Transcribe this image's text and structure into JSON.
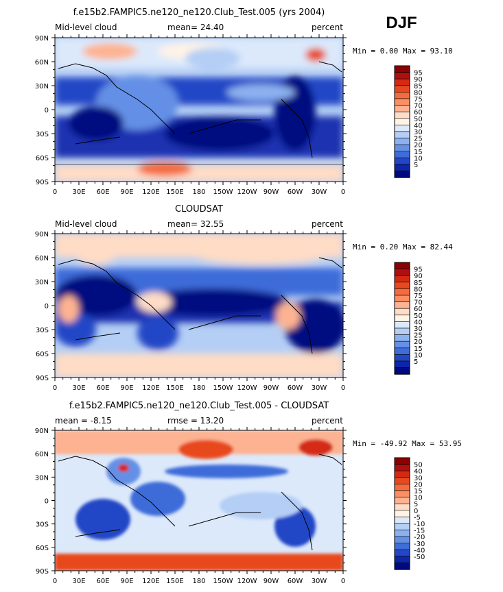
{
  "season": "DJF",
  "panels": [
    {
      "title": "f.e15b2.FAMPIC5.ne120_ne120.Club_Test.005 (yrs 2004)",
      "left_label": "Mid-level cloud",
      "center_label": "mean=  24.40",
      "right_label": "percent",
      "minmax": "Min =    0.00 Max =   93.10"
    },
    {
      "title": "CLOUDSAT",
      "left_label": "Mid-level cloud",
      "center_label": "mean=  32.55",
      "right_label": "percent",
      "minmax": "Min =    0.20 Max =   82.44"
    },
    {
      "title": "f.e15b2.FAMPIC5.ne120_ne120.Club_Test.005 - CLOUDSAT",
      "left_label": "mean =  -8.15",
      "center_label": "rmse =  13.20",
      "right_label": "percent",
      "minmax": "Min = -49.92 Max =   53.95"
    }
  ],
  "x_ticks": [
    "0",
    "30E",
    "60E",
    "90E",
    "120E",
    "150E",
    "180",
    "150W",
    "120W",
    "90W",
    "60W",
    "30W",
    "0"
  ],
  "y_ticks": [
    "90N",
    "60N",
    "30N",
    "0",
    "30S",
    "60S",
    "90S"
  ],
  "colorbar_field": {
    "labels": [
      "95",
      "90",
      "85",
      "80",
      "75",
      "70",
      "60",
      "50",
      "40",
      "30",
      "25",
      "20",
      "15",
      "10",
      "5"
    ],
    "colors": [
      "#8b0000",
      "#b00f0f",
      "#d42a12",
      "#e8481f",
      "#f56b3e",
      "#fb8f64",
      "#fdb391",
      "#fedcc6",
      "#fff3e6",
      "#dce9fb",
      "#b4cef5",
      "#8cb1ef",
      "#6490e6",
      "#3e6cd9",
      "#2346c6",
      "#0d25a8",
      "#000a80"
    ]
  },
  "colorbar_diff": {
    "labels": [
      "50",
      "40",
      "30",
      "20",
      "15",
      "10",
      "5",
      "0",
      "-5",
      "-10",
      "-15",
      "-20",
      "-30",
      "-40",
      "-50"
    ],
    "colors": [
      "#8b0000",
      "#b00f0f",
      "#d42a12",
      "#e8481f",
      "#f56b3e",
      "#fb8f64",
      "#fdb391",
      "#fedcc6",
      "#fff3e6",
      "#dce9fb",
      "#b4cef5",
      "#8cb1ef",
      "#6490e6",
      "#3e6cd9",
      "#2346c6",
      "#0d25a8",
      "#000a80"
    ]
  },
  "chart_data": [
    {
      "type": "heatmap",
      "title": "f.e15b2.FAMPIC5.ne120_ne120.Club_Test.005 (yrs 2004)",
      "variable": "Mid-level cloud",
      "units": "percent",
      "mean": 24.4,
      "min": 0.0,
      "max": 93.1,
      "x_range": [
        0,
        360
      ],
      "y_range": [
        -90,
        90
      ],
      "contour_levels": [
        5,
        10,
        15,
        20,
        25,
        30,
        40,
        50,
        60,
        70,
        75,
        80,
        85,
        90,
        95
      ]
    },
    {
      "type": "heatmap",
      "title": "CLOUDSAT",
      "variable": "Mid-level cloud",
      "units": "percent",
      "mean": 32.55,
      "min": 0.2,
      "max": 82.44,
      "x_range": [
        0,
        360
      ],
      "y_range": [
        -90,
        90
      ],
      "contour_levels": [
        5,
        10,
        15,
        20,
        25,
        30,
        40,
        50,
        60,
        70,
        75,
        80,
        85,
        90,
        95
      ]
    },
    {
      "type": "heatmap",
      "title": "f.e15b2.FAMPIC5.ne120_ne120.Club_Test.005 - CLOUDSAT",
      "units": "percent",
      "mean": -8.15,
      "rmse": 13.2,
      "min": -49.92,
      "max": 53.95,
      "x_range": [
        0,
        360
      ],
      "y_range": [
        -90,
        90
      ],
      "contour_levels": [
        -50,
        -40,
        -30,
        -20,
        -15,
        -10,
        -5,
        0,
        5,
        10,
        15,
        20,
        30,
        40,
        50
      ]
    }
  ]
}
